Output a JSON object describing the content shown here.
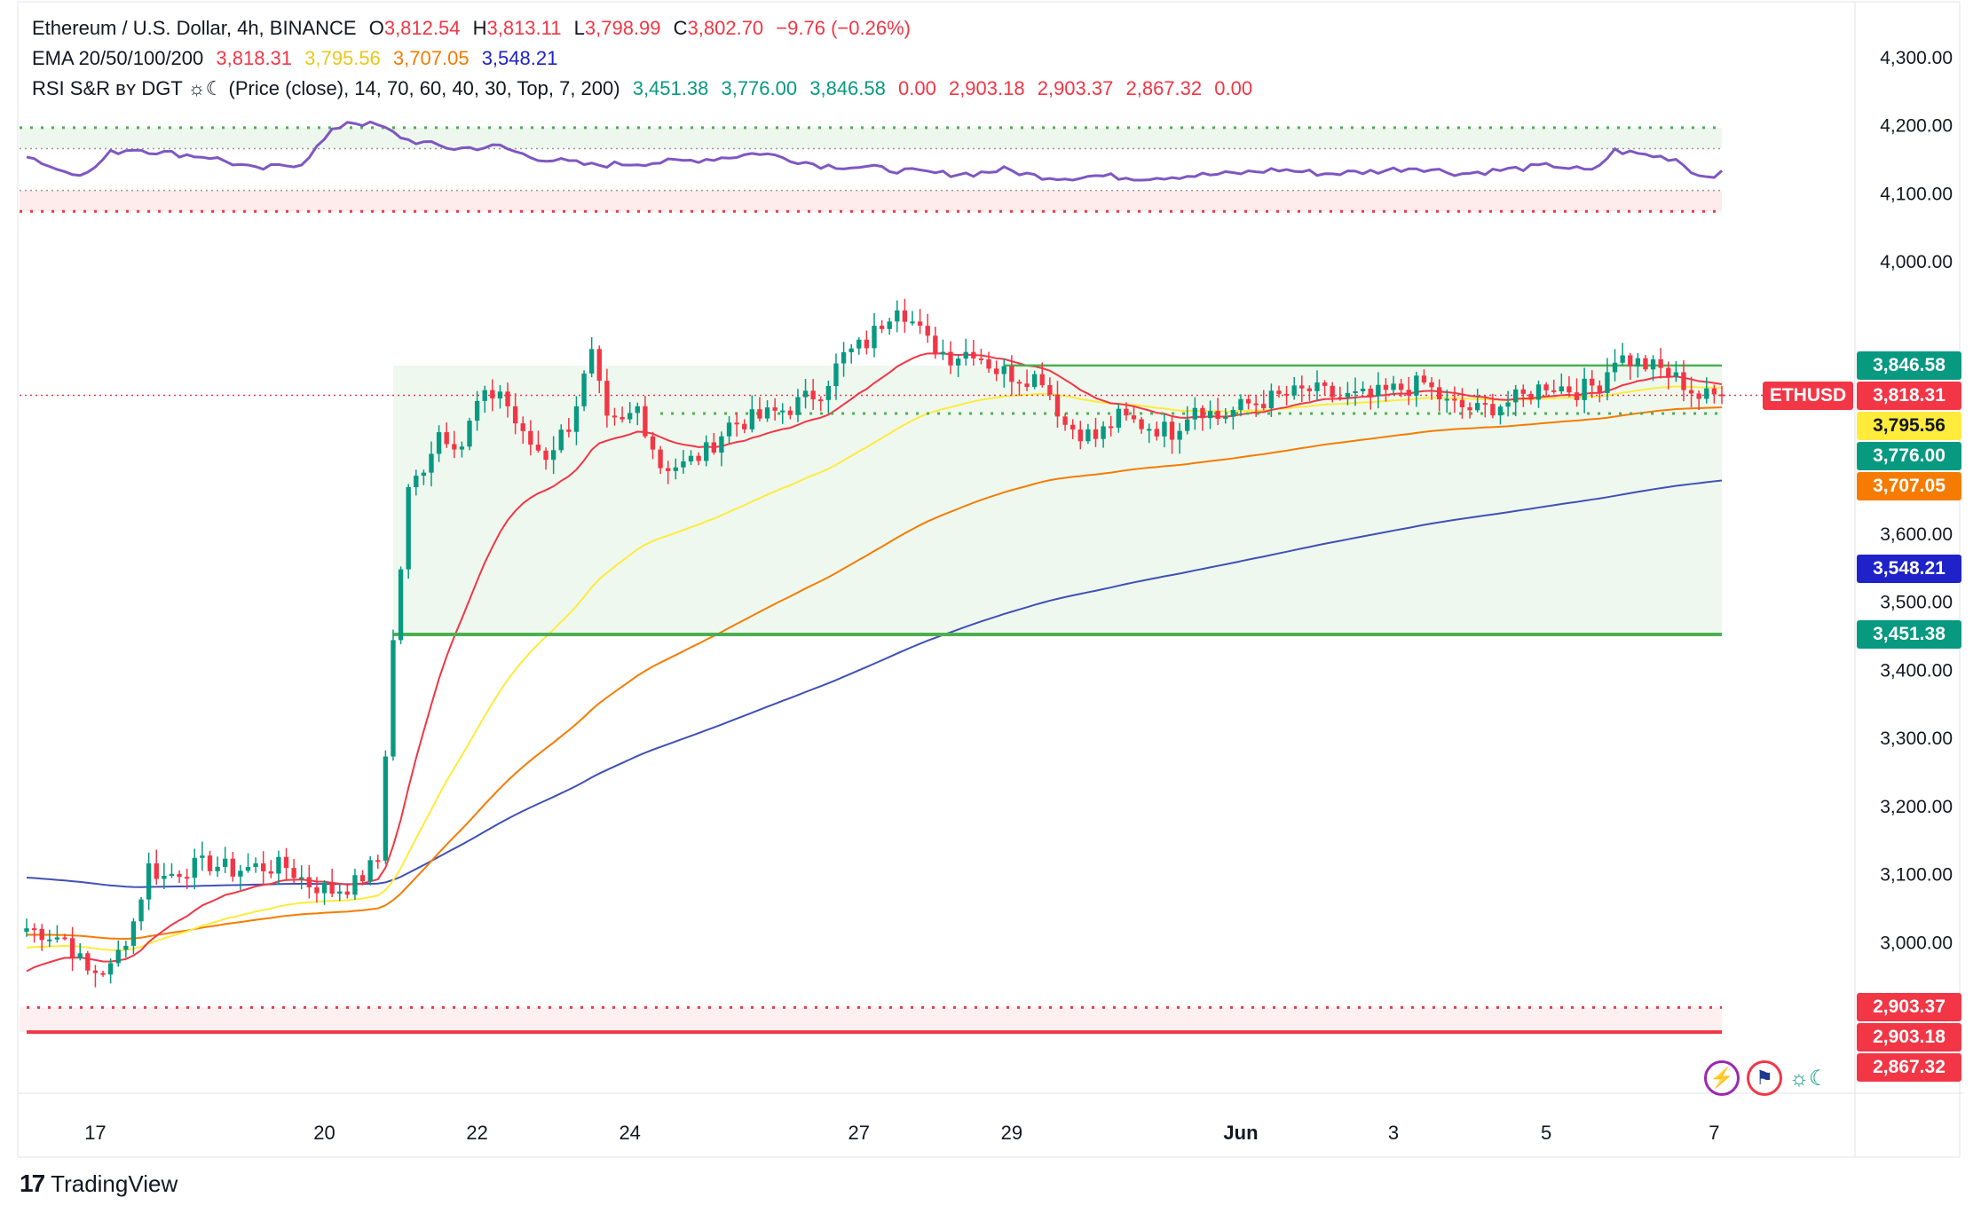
{
  "legend": {
    "symbol_title": "Ethereum / U.S. Dollar, 4h, BINANCE",
    "o_label": "O",
    "o_value": "3,812.54",
    "h_label": "H",
    "h_value": "3,813.11",
    "l_label": "L",
    "l_value": "3,798.99",
    "c_label": "C",
    "c_value": "3,802.70",
    "change": "−9.76 (−0.26%)",
    "ema_name": "EMA 20/50/100/200",
    "ema_values": [
      "3,818.31",
      "3,795.56",
      "3,707.05",
      "3,548.21"
    ],
    "rsi_name": "RSI S&R ʙʏ DGT ☼☾ (Price (close), 14, 70, 60, 40, 30, Top, 7, 200)",
    "rsi_values_green": [
      "3,451.38",
      "3,776.00",
      "3,846.58"
    ],
    "rsi_values_red": [
      "0.00",
      "2,903.18",
      "2,903.37",
      "2,867.32",
      "0.00"
    ]
  },
  "branding": {
    "logo": "17",
    "name": "TradingView"
  },
  "symbol_badge": "ETHUSD",
  "price_labels": [
    {
      "value": 3846.58,
      "text": "3,846.58",
      "color": "#089981"
    },
    {
      "value": 3818.31,
      "text": "3,818.31",
      "color": "#f23645"
    },
    {
      "value": 3795.56,
      "text": "3,795.56",
      "color": "#ffeb3b",
      "text_color": "#131722"
    },
    {
      "value": 3776.0,
      "text": "3,776.00",
      "color": "#089981"
    },
    {
      "value": 3707.05,
      "text": "3,707.05",
      "color": "#f57c00"
    },
    {
      "value": 3548.21,
      "text": "3,548.21",
      "color": "#1e22c8"
    },
    {
      "value": 3451.38,
      "text": "3,451.38",
      "color": "#089981"
    },
    {
      "value": 2903.37,
      "text": "2,903.37",
      "color": "#f23645"
    },
    {
      "value": 2903.18,
      "text": "2,903.18",
      "color": "#f23645"
    },
    {
      "value": 2867.32,
      "text": "2,867.32",
      "color": "#f23645"
    }
  ],
  "current_price": 3802.7,
  "colors": {
    "up": "#089981",
    "down": "#f23645",
    "ema20": "#f23645",
    "ema50": "#ffeb3b",
    "ema100": "#f57c00",
    "ema200": "#3f51b5",
    "rsi": "#7e57c2",
    "support": "#4caf50",
    "resistance": "#f23645"
  },
  "icons": [
    "lightning-icon",
    "us-flag-icon",
    "sun-moon-icon"
  ],
  "icon_glyphs": {
    "sun_moon": "☼☾",
    "lightning": "⚡",
    "flag": "⚑"
  },
  "chart_data": {
    "type": "candlestick",
    "timeframe": "4h",
    "ylim": [
      2850,
      4330
    ],
    "y_ticks": [
      4300,
      4200,
      4100,
      4000,
      3900,
      3800,
      3700,
      3600,
      3500,
      3400,
      3300,
      3200,
      3100,
      3000,
      2900
    ],
    "y_tick_labels": [
      "4,300.00",
      "4,200.00",
      "4,100.00",
      "4,000.00",
      "3,900.00",
      "3,800.00",
      "3,700.00",
      "3,600.00",
      "3,500.00",
      "3,400.00",
      "3,300.00",
      "3,200.00",
      "3,100.00",
      "3,000.00",
      "2,900.00"
    ],
    "x_ticks": [
      {
        "bar": 9,
        "label": "17"
      },
      {
        "bar": 39,
        "label": "20"
      },
      {
        "bar": 59,
        "label": "22"
      },
      {
        "bar": 79,
        "label": "24"
      },
      {
        "bar": 109,
        "label": "27"
      },
      {
        "bar": 129,
        "label": "29"
      },
      {
        "bar": 159,
        "label": "Jun"
      },
      {
        "bar": 179,
        "label": "3"
      },
      {
        "bar": 199,
        "label": "5"
      },
      {
        "bar": 221,
        "label": "7"
      }
    ],
    "total_bars": 223,
    "anchor_points": [
      [
        0,
        3020
      ],
      [
        5,
        3005
      ],
      [
        8,
        2955
      ],
      [
        11,
        2960
      ],
      [
        14,
        3030
      ],
      [
        16,
        3110
      ],
      [
        18,
        3095
      ],
      [
        20,
        3105
      ],
      [
        24,
        3115
      ],
      [
        27,
        3105
      ],
      [
        30,
        3110
      ],
      [
        34,
        3110
      ],
      [
        37,
        3085
      ],
      [
        40,
        3075
      ],
      [
        43,
        3085
      ],
      [
        46,
        3120
      ],
      [
        48,
        3440
      ],
      [
        50,
        3660
      ],
      [
        52,
        3700
      ],
      [
        54,
        3750
      ],
      [
        57,
        3730
      ],
      [
        59,
        3790
      ],
      [
        62,
        3810
      ],
      [
        65,
        3740
      ],
      [
        68,
        3715
      ],
      [
        71,
        3760
      ],
      [
        74,
        3860
      ],
      [
        76,
        3760
      ],
      [
        78,
        3760
      ],
      [
        80,
        3785
      ],
      [
        83,
        3700
      ],
      [
        86,
        3700
      ],
      [
        89,
        3720
      ],
      [
        92,
        3760
      ],
      [
        96,
        3770
      ],
      [
        100,
        3785
      ],
      [
        104,
        3810
      ],
      [
        107,
        3860
      ],
      [
        110,
        3880
      ],
      [
        114,
        3940
      ],
      [
        118,
        3880
      ],
      [
        121,
        3860
      ],
      [
        124,
        3870
      ],
      [
        127,
        3840
      ],
      [
        130,
        3830
      ],
      [
        133,
        3830
      ],
      [
        136,
        3760
      ],
      [
        140,
        3740
      ],
      [
        143,
        3770
      ],
      [
        146,
        3760
      ],
      [
        150,
        3750
      ],
      [
        153,
        3790
      ],
      [
        156,
        3770
      ],
      [
        160,
        3790
      ],
      [
        164,
        3800
      ],
      [
        168,
        3810
      ],
      [
        172,
        3800
      ],
      [
        176,
        3800
      ],
      [
        179,
        3810
      ],
      [
        183,
        3820
      ],
      [
        186,
        3790
      ],
      [
        190,
        3780
      ],
      [
        193,
        3790
      ],
      [
        196,
        3800
      ],
      [
        199,
        3820
      ],
      [
        203,
        3810
      ],
      [
        206,
        3820
      ],
      [
        208,
        3860
      ],
      [
        211,
        3850
      ],
      [
        214,
        3840
      ],
      [
        217,
        3820
      ],
      [
        219,
        3800
      ],
      [
        222,
        3803
      ]
    ],
    "series": [
      {
        "name": "EMA 20",
        "values_start": 2950,
        "values_end": 3818.31
      },
      {
        "name": "EMA 50",
        "values_start": 2990,
        "values_end": 3795.56
      },
      {
        "name": "EMA 100",
        "values_start": 3010,
        "values_end": 3707.05
      },
      {
        "name": "EMA 200",
        "values_start": 3095,
        "values_end": 3548.21
      }
    ],
    "rsi_levels": [
      70,
      60,
      40,
      30
    ],
    "rsi_anchor_points": [
      [
        0,
        57
      ],
      [
        4,
        50
      ],
      [
        8,
        48
      ],
      [
        11,
        58
      ],
      [
        14,
        60
      ],
      [
        18,
        58
      ],
      [
        24,
        56
      ],
      [
        30,
        50
      ],
      [
        36,
        53
      ],
      [
        40,
        68
      ],
      [
        42,
        73
      ],
      [
        46,
        71
      ],
      [
        50,
        64
      ],
      [
        56,
        60
      ],
      [
        62,
        61
      ],
      [
        66,
        56
      ],
      [
        70,
        54
      ],
      [
        74,
        52
      ],
      [
        80,
        53
      ],
      [
        86,
        54
      ],
      [
        92,
        56
      ],
      [
        96,
        58
      ],
      [
        100,
        55
      ],
      [
        104,
        52
      ],
      [
        110,
        51
      ],
      [
        116,
        49
      ],
      [
        120,
        48
      ],
      [
        124,
        48
      ],
      [
        128,
        50
      ],
      [
        132,
        47
      ],
      [
        136,
        46
      ],
      [
        140,
        47
      ],
      [
        146,
        46
      ],
      [
        152,
        47
      ],
      [
        158,
        48
      ],
      [
        164,
        50
      ],
      [
        170,
        48
      ],
      [
        176,
        49
      ],
      [
        182,
        51
      ],
      [
        188,
        48
      ],
      [
        194,
        50
      ],
      [
        200,
        52
      ],
      [
        205,
        49
      ],
      [
        208,
        59
      ],
      [
        212,
        57
      ],
      [
        216,
        55
      ],
      [
        219,
        47
      ],
      [
        222,
        48
      ]
    ],
    "rsi_ylim": [
      25,
      78
    ],
    "levels": [
      {
        "value": 3846.58,
        "color": "#4caf50",
        "from_bar": 128,
        "to_bar": 222,
        "style": "solid"
      },
      {
        "value": 3776.0,
        "color": "#4caf50",
        "from_bar": 83,
        "to_bar": 222,
        "style": "dotted"
      },
      {
        "value": 3451.38,
        "color": "#4caf50",
        "from_bar": 48,
        "to_bar": 222,
        "style": "solid-thick"
      },
      {
        "value": 2903.37,
        "color": "#f23645",
        "from_bar": 0,
        "to_bar": 222,
        "style": "dotted"
      },
      {
        "value": 2867.32,
        "color": "#f23645",
        "from_bar": 0,
        "to_bar": 222,
        "style": "solid-thick"
      }
    ]
  }
}
